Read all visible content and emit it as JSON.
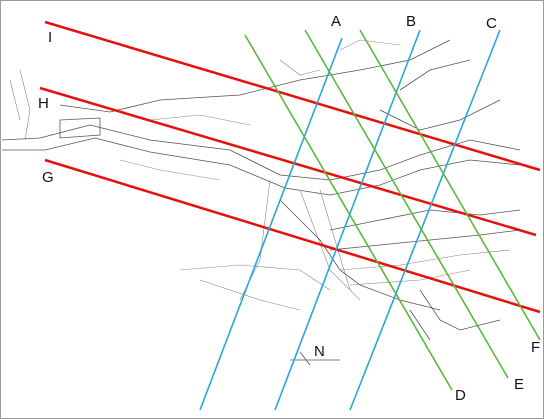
{
  "section_lines": [
    {
      "label": "I"
    },
    {
      "label": "H"
    },
    {
      "label": "G"
    },
    {
      "label": "A"
    },
    {
      "label": "B"
    },
    {
      "label": "C"
    },
    {
      "label": "D"
    },
    {
      "label": "E"
    },
    {
      "label": "F"
    }
  ],
  "north_label": "N"
}
